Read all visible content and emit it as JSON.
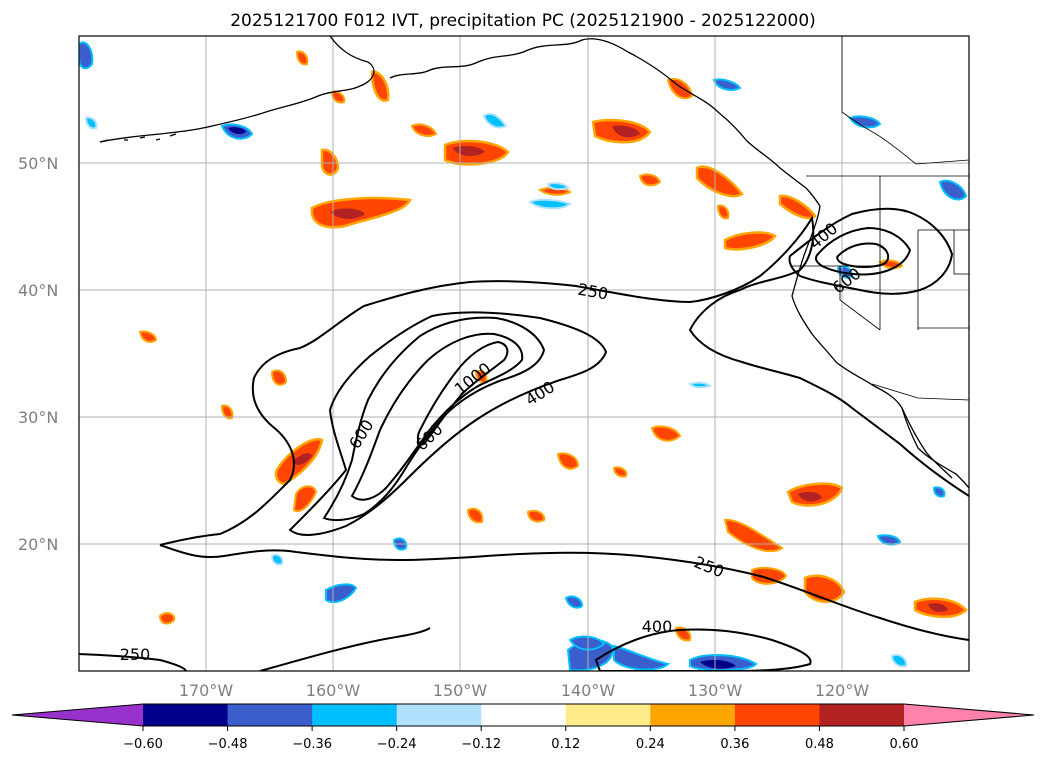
{
  "figure": {
    "title": "2025121700 F012 IVT, precipitation PC (2025121900 - 2025122000)"
  },
  "chart_data": {
    "type": "map",
    "title": "2025121700 F012 IVT, precipitation PC (2025121900 - 2025122000)",
    "lon_range": [
      -180,
      -110
    ],
    "lat_range": [
      10,
      60
    ],
    "longitude_ticks": [
      {
        "value": -170,
        "label": "170°W"
      },
      {
        "value": -160,
        "label": "160°W"
      },
      {
        "value": -150,
        "label": "150°W"
      },
      {
        "value": -140,
        "label": "140°W"
      },
      {
        "value": -130,
        "label": "130°W"
      },
      {
        "value": -120,
        "label": "120°W"
      }
    ],
    "latitude_ticks": [
      {
        "value": 50,
        "label": "50°N"
      },
      {
        "value": 40,
        "label": "40°N"
      },
      {
        "value": 30,
        "label": "30°N"
      },
      {
        "value": 20,
        "label": "20°N"
      }
    ],
    "grid": true,
    "ivt_contour_levels": [
      250,
      400,
      600,
      800,
      1000
    ],
    "ivt_contour_labels": [
      {
        "text": "250",
        "lon": -146,
        "lat": 39.8
      },
      {
        "text": "250",
        "lon": -134.7,
        "lat": 17.8
      },
      {
        "text": "250",
        "lon": -175.5,
        "lat": 11.3
      },
      {
        "text": "400",
        "lon": -143.3,
        "lat": 32.0
      },
      {
        "text": "400",
        "lon": -117.9,
        "lat": 43.6
      },
      {
        "text": "400",
        "lon": -138.8,
        "lat": 13.5
      },
      {
        "text": "600",
        "lon": -149.3,
        "lat": 29.0
      },
      {
        "text": "600",
        "lon": -152.9,
        "lat": 25.5
      },
      {
        "text": "600",
        "lon": -117.3,
        "lat": 40.5
      },
      {
        "text": "800",
        "lon": -151.6,
        "lat": 27.8
      },
      {
        "text": "1000",
        "lon": -148.9,
        "lat": 31.5
      }
    ],
    "precip_pc_shaded": {
      "colorbar_ticks": [
        "−0.60",
        "−0.48",
        "−0.36",
        "−0.24",
        "−0.12",
        "0.12",
        "0.24",
        "0.36",
        "0.48",
        "0.60"
      ],
      "colorbar_values": [
        -0.6,
        -0.48,
        -0.36,
        -0.24,
        -0.12,
        0.12,
        0.24,
        0.36,
        0.48,
        0.6
      ],
      "colors": [
        "#9932cc",
        "#00008b",
        "#3a5fcd",
        "#00bfff",
        "#b0e2ff",
        "#ffffff",
        "#ffeb8a",
        "#ffa500",
        "#ff4500",
        "#b22222",
        "#ff82ab"
      ],
      "extend": "both"
    }
  }
}
